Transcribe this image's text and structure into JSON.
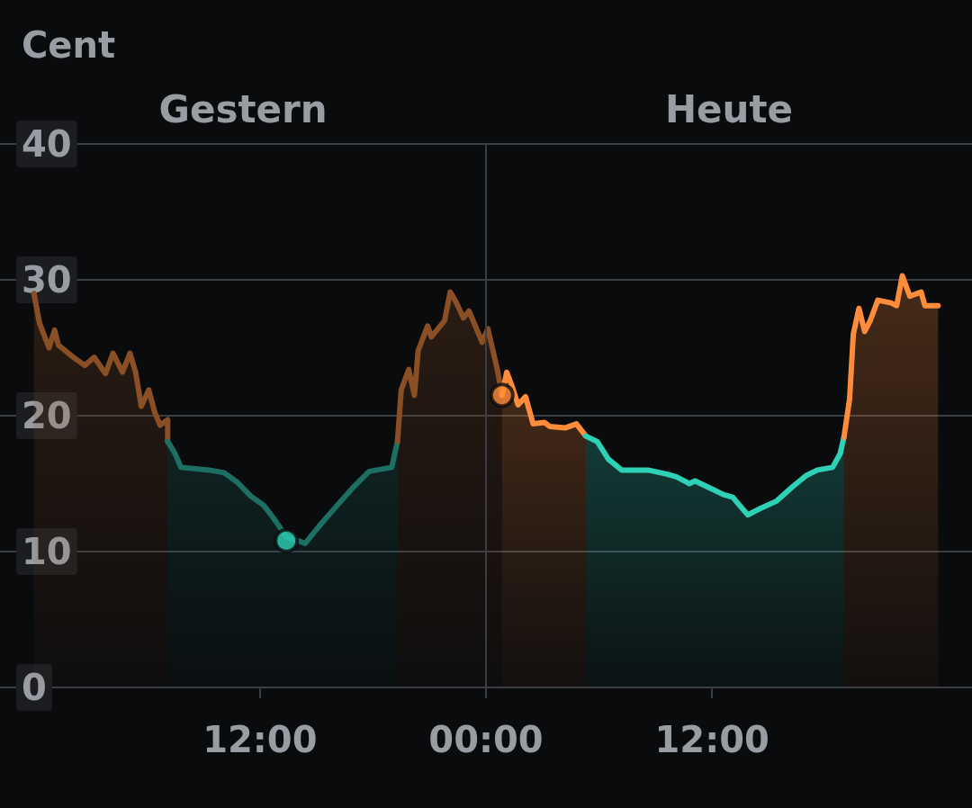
{
  "chart_data": {
    "type": "area",
    "ylabel": "Cent",
    "annotations": [
      "Gestern",
      "Heute"
    ],
    "xlim": [
      -25.8,
      25.8
    ],
    "xticks": [
      {
        "value": -24,
        "label": null
      },
      {
        "value": -12,
        "label": "12:00"
      },
      {
        "value": 0,
        "label": "00:00"
      },
      {
        "value": 12,
        "label": "12:00"
      }
    ],
    "ylim": [
      0,
      40
    ],
    "yticks": [
      0,
      10,
      20,
      30,
      40
    ],
    "grid": "y",
    "marker": "none",
    "line_style": "solid",
    "ref_lines": [
      {
        "axis": "x",
        "value": 0,
        "label": null,
        "color": "#3a3d44"
      }
    ],
    "series": [
      {
        "color": "#8a4f24",
        "x": [
          -24,
          -23.7,
          -23.2,
          -22.9,
          -22.7,
          -21.9,
          -21.3,
          -20.8,
          -20.2,
          -19.8,
          -19.3,
          -18.9,
          -18.6,
          -18.3,
          -17.9,
          -17.6,
          -17.3,
          -16.9,
          -16.9
        ],
        "values": [
          29.0,
          26.8,
          25.0,
          26.3,
          25.2,
          24.3,
          23.7,
          24.3,
          23.1,
          24.6,
          23.2,
          24.6,
          23.2,
          20.7,
          21.9,
          20.3,
          19.3,
          19.7,
          18.1
        ]
      },
      {
        "color": "#1d6e63",
        "x": [
          -16.9,
          -16.5,
          -16.2,
          -14.7,
          -13.9,
          -13.2,
          -12.5,
          -11.8,
          -11.3,
          -10.6,
          -9.6,
          -8.9,
          -7.9,
          -7.0,
          -6.2,
          -5.0,
          -4.7
        ],
        "values": [
          18.1,
          17.2,
          16.2,
          16.0,
          15.8,
          15.1,
          14.1,
          13.4,
          12.5,
          11.1,
          10.6,
          11.8,
          13.4,
          14.8,
          15.9,
          16.2,
          18.1
        ]
      },
      {
        "color": "#8a4f24",
        "x": [
          -4.7,
          -4.5,
          -4.1,
          -3.8,
          -3.6,
          -3.1,
          -2.9,
          -2.2,
          -1.9,
          -1.6,
          -1.2,
          -0.9,
          -0.2,
          0.1,
          0.6,
          0.85
        ],
        "values": [
          18.1,
          21.9,
          23.4,
          21.5,
          24.8,
          26.6,
          25.8,
          27.0,
          29.1,
          28.4,
          27.2,
          27.7,
          25.4,
          26.4,
          23.4,
          21.5
        ]
      },
      {
        "color": "#ff8c3a",
        "x": [
          0.85,
          1.1,
          1.4,
          1.7,
          2.1,
          2.5,
          3.1,
          3.4,
          4.2,
          4.8,
          5.3
        ],
        "values": [
          21.5,
          23.2,
          22.1,
          20.8,
          21.4,
          19.4,
          19.5,
          19.2,
          19.1,
          19.4,
          18.5
        ]
      },
      {
        "color": "#2ed1b5",
        "x": [
          5.3,
          5.9,
          6.5,
          7.2,
          8.6,
          9.6,
          10.1,
          10.8,
          11.1,
          12.0,
          12.6,
          13.1,
          13.4,
          13.9,
          14.6,
          15.4,
          16.3,
          17.0,
          17.6,
          18.4,
          18.8,
          19.0
        ],
        "values": [
          18.5,
          18.1,
          16.8,
          16.0,
          16.0,
          15.7,
          15.5,
          15.0,
          15.2,
          14.6,
          14.2,
          14.0,
          13.5,
          12.7,
          13.2,
          13.7,
          14.8,
          15.6,
          16.0,
          16.2,
          17.2,
          18.4
        ]
      },
      {
        "color": "#ff8c3a",
        "x": [
          19.0,
          19.3,
          19.5,
          19.8,
          20.1,
          20.4,
          20.8,
          21.5,
          21.8,
          22.1,
          22.5,
          23.1,
          23.3,
          24.0
        ],
        "values": [
          18.4,
          21.2,
          26.0,
          27.9,
          26.2,
          27.0,
          28.5,
          28.3,
          28.1,
          30.3,
          28.8,
          29.1,
          28.1,
          28.1
        ]
      },
      {
        "type": "scatter",
        "marker": "circle",
        "x": [
          -10.6,
          0.85
        ],
        "values": [
          10.8,
          21.5
        ],
        "colors": [
          "#2ed1b5",
          "#ff8c3a"
        ]
      }
    ]
  }
}
